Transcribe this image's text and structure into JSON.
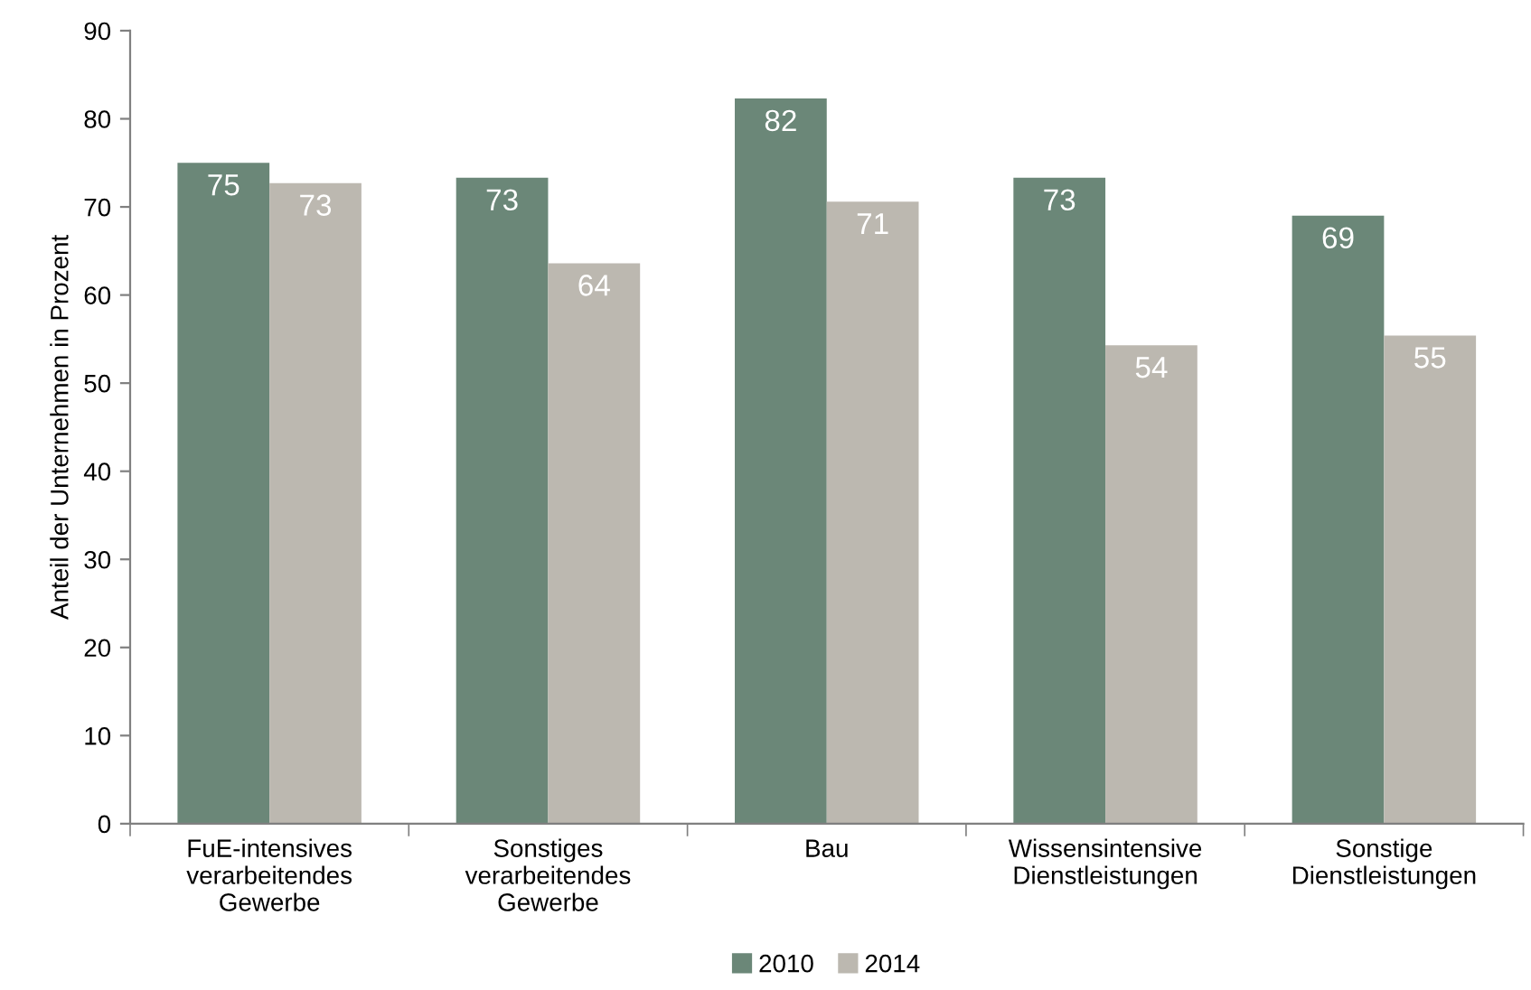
{
  "chart_data": {
    "type": "bar",
    "ylabel": "Anteil der Unternehmen in Prozent",
    "categories": [
      "FuE-intensives\nverarbeitendes\nGewerbe",
      "Sonstiges\nverarbeitendes\nGewerbe",
      "Bau",
      "Wissensintensive\nDienstleistungen",
      "Sonstige\nDienstleistungen"
    ],
    "series": [
      {
        "name": "2010",
        "color": "#6b8778",
        "values": [
          75.0,
          73.3,
          82.3,
          73.3,
          69.0
        ],
        "value_labels": [
          "75",
          "73",
          "82",
          "73",
          "69"
        ]
      },
      {
        "name": "2014",
        "color": "#bcb8b0",
        "values": [
          72.7,
          63.6,
          70.6,
          54.3,
          55.4
        ],
        "value_labels": [
          "73",
          "64",
          "71",
          "54",
          "55"
        ]
      }
    ],
    "ylim": [
      0,
      90
    ],
    "yticks": [
      0,
      10,
      20,
      30,
      40,
      50,
      60,
      70,
      80,
      90
    ],
    "grid": false,
    "legend": "bottom"
  }
}
